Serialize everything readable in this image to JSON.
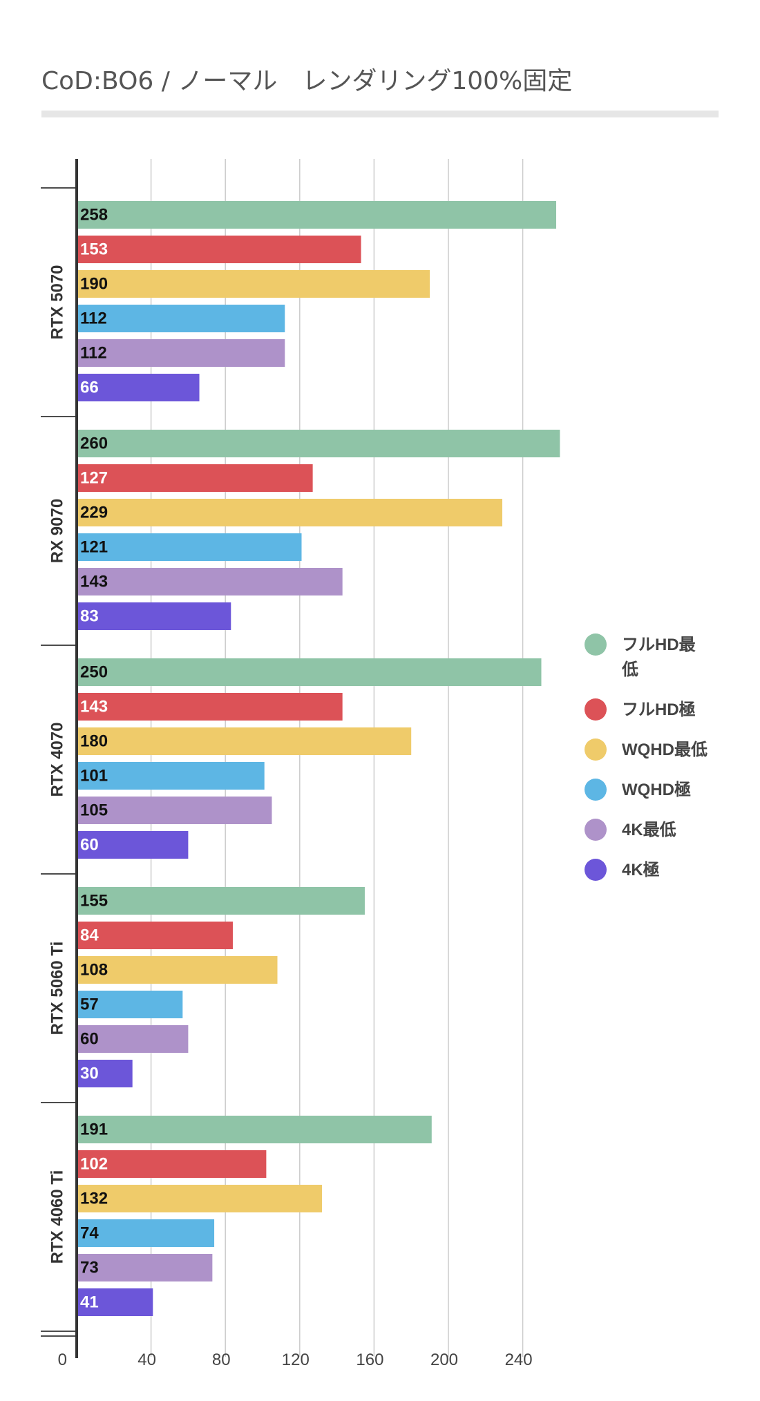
{
  "chart_data": {
    "type": "bar",
    "orientation": "horizontal",
    "title": "CoD:BO6 /  ノーマル　レンダリング100%固定",
    "xlabel": "",
    "ylabel": "",
    "xlim": [
      0,
      280
    ],
    "x_ticks": [
      "0",
      "40",
      "80",
      "120",
      "160",
      "200",
      "240"
    ],
    "grid": true,
    "legend_position": "right",
    "categories": [
      "RTX 5070",
      "RX 9070",
      "RTX 4070",
      "RTX 5060 Ti",
      "RTX 4060 Ti"
    ],
    "series": [
      {
        "name": "フルHD最低",
        "color": "#8fc4a7",
        "label_color": "#111111",
        "values": [
          258,
          260,
          250,
          155,
          191
        ]
      },
      {
        "name": "フルHD極",
        "color": "#dc5257",
        "label_color": "#ffffff",
        "values": [
          153,
          127,
          143,
          84,
          102
        ]
      },
      {
        "name": "WQHD最低",
        "color": "#efcb6a",
        "label_color": "#111111",
        "values": [
          190,
          229,
          180,
          108,
          132
        ]
      },
      {
        "name": "WQHD極",
        "color": "#5db6e4",
        "label_color": "#111111",
        "values": [
          112,
          121,
          101,
          57,
          74
        ]
      },
      {
        "name": "4K最低",
        "color": "#ae92c9",
        "label_color": "#111111",
        "values": [
          112,
          143,
          105,
          60,
          73
        ]
      },
      {
        "name": "4K極",
        "color": "#6c56d9",
        "label_color": "#ffffff",
        "values": [
          66,
          83,
          60,
          30,
          41
        ]
      }
    ]
  }
}
